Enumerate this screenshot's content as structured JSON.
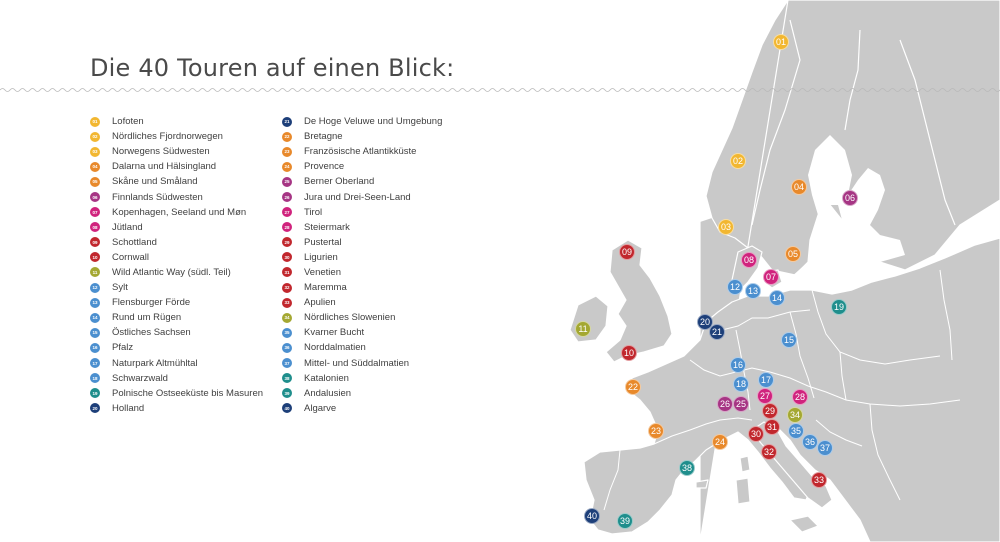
{
  "title": "Die 40 Touren auf einen Blick:",
  "colors": {
    "yellow": "#f2b731",
    "orange": "#e8892b",
    "magenta": "#a63584",
    "pink": "#d0237d",
    "red": "#c1272d",
    "olive": "#a4a832",
    "lightblue": "#4b8fcf",
    "teal": "#1f8e8c",
    "navy": "#1d3f79",
    "map_land": "#c9c9c9",
    "map_border": "#ffffff"
  },
  "tours": [
    {
      "num": "01",
      "name": "Lofoten",
      "color": "#f2b731"
    },
    {
      "num": "02",
      "name": "Nördliches Fjordnorwegen",
      "color": "#f2b731"
    },
    {
      "num": "03",
      "name": "Norwegens Südwesten",
      "color": "#f2b731"
    },
    {
      "num": "04",
      "name": "Dalarna und Hälsingland",
      "color": "#e8892b"
    },
    {
      "num": "05",
      "name": "Skåne und Småland",
      "color": "#e8892b"
    },
    {
      "num": "06",
      "name": "Finnlands Südwesten",
      "color": "#a63584"
    },
    {
      "num": "07",
      "name": "Kopenhagen, Seeland und Møn",
      "color": "#d0237d"
    },
    {
      "num": "08",
      "name": "Jütland",
      "color": "#d0237d"
    },
    {
      "num": "09",
      "name": "Schottland",
      "color": "#c1272d"
    },
    {
      "num": "10",
      "name": "Cornwall",
      "color": "#c1272d"
    },
    {
      "num": "11",
      "name": "Wild Atlantic Way (südl. Teil)",
      "color": "#a4a832"
    },
    {
      "num": "12",
      "name": "Sylt",
      "color": "#4b8fcf"
    },
    {
      "num": "13",
      "name": "Flensburger Förde",
      "color": "#4b8fcf"
    },
    {
      "num": "14",
      "name": "Rund um Rügen",
      "color": "#4b8fcf"
    },
    {
      "num": "15",
      "name": "Östliches Sachsen",
      "color": "#4b8fcf"
    },
    {
      "num": "16",
      "name": "Pfalz",
      "color": "#4b8fcf"
    },
    {
      "num": "17",
      "name": "Naturpark Altmühltal",
      "color": "#4b8fcf"
    },
    {
      "num": "18",
      "name": "Schwarzwald",
      "color": "#4b8fcf"
    },
    {
      "num": "19",
      "name": "Polnische Ostseeküste bis Masuren",
      "color": "#1f8e8c"
    },
    {
      "num": "20",
      "name": "Holland",
      "color": "#1d3f79"
    },
    {
      "num": "21",
      "name": "De Hoge Veluwe und Umgebung",
      "color": "#1d3f79"
    },
    {
      "num": "22",
      "name": "Bretagne",
      "color": "#e8892b"
    },
    {
      "num": "23",
      "name": "Französische Atlantikküste",
      "color": "#e8892b"
    },
    {
      "num": "24",
      "name": "Provence",
      "color": "#e8892b"
    },
    {
      "num": "25",
      "name": "Berner Oberland",
      "color": "#a63584"
    },
    {
      "num": "26",
      "name": "Jura und Drei-Seen-Land",
      "color": "#a63584"
    },
    {
      "num": "27",
      "name": "Tirol",
      "color": "#d0237d"
    },
    {
      "num": "28",
      "name": "Steiermark",
      "color": "#d0237d"
    },
    {
      "num": "29",
      "name": "Pustertal",
      "color": "#c1272d"
    },
    {
      "num": "30",
      "name": "Ligurien",
      "color": "#c1272d"
    },
    {
      "num": "31",
      "name": "Venetien",
      "color": "#c1272d"
    },
    {
      "num": "32",
      "name": "Maremma",
      "color": "#c1272d"
    },
    {
      "num": "33",
      "name": "Apulien",
      "color": "#c1272d"
    },
    {
      "num": "34",
      "name": "Nördliches Slowenien",
      "color": "#a4a832"
    },
    {
      "num": "35",
      "name": "Kvarner Bucht",
      "color": "#4b8fcf"
    },
    {
      "num": "36",
      "name": "Norddalmatien",
      "color": "#4b8fcf"
    },
    {
      "num": "37",
      "name": "Mittel- und Süddalmatien",
      "color": "#4b8fcf"
    },
    {
      "num": "38",
      "name": "Katalonien",
      "color": "#1f8e8c"
    },
    {
      "num": "39",
      "name": "Andalusien",
      "color": "#1f8e8c"
    },
    {
      "num": "40",
      "name": "Algarve",
      "color": "#1d3f79"
    }
  ]
}
